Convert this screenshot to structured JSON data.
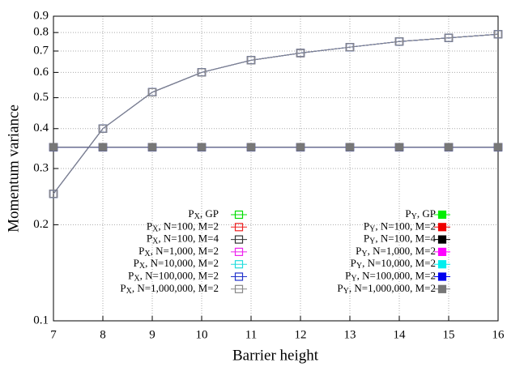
{
  "chart_data": {
    "type": "line",
    "x_label": "Barrier height",
    "y_label": "Momentum variance",
    "x": [
      7,
      8,
      9,
      10,
      11,
      12,
      13,
      14,
      15,
      16
    ],
    "xlim": [
      7,
      16
    ],
    "xticks": [
      7,
      8,
      9,
      10,
      11,
      12,
      13,
      14,
      15,
      16
    ],
    "ylim": [
      0.1,
      0.9
    ],
    "yticks": [
      0.1,
      0.2,
      0.3,
      0.4,
      0.5,
      0.6,
      0.7,
      0.8,
      0.9
    ],
    "y_log_scale": true,
    "grid": true,
    "series": [
      {
        "name": "PX, GP",
        "color": "#00dd00",
        "marker": "open",
        "values": [
          0.25,
          0.4,
          0.52,
          0.6,
          0.655,
          0.69,
          0.72,
          0.75,
          0.77,
          0.79
        ]
      },
      {
        "name": "PX, N=100, M=2",
        "color": "#ee2222",
        "marker": "open",
        "values": [
          0.25,
          0.4,
          0.52,
          0.6,
          0.655,
          0.69,
          0.72,
          0.75,
          0.77,
          0.79
        ]
      },
      {
        "name": "PX, N=100, M=4",
        "color": "#333333",
        "marker": "open",
        "values": [
          0.25,
          0.4,
          0.52,
          0.6,
          0.655,
          0.69,
          0.72,
          0.75,
          0.77,
          0.79
        ]
      },
      {
        "name": "PX, N=1,000, M=2",
        "color": "#ee22ee",
        "marker": "open",
        "values": [
          0.25,
          0.4,
          0.52,
          0.6,
          0.655,
          0.69,
          0.72,
          0.75,
          0.77,
          0.79
        ]
      },
      {
        "name": "PX, N=10,000, M=2",
        "color": "#22dddd",
        "marker": "open",
        "values": [
          0.25,
          0.4,
          0.52,
          0.6,
          0.655,
          0.69,
          0.72,
          0.75,
          0.77,
          0.79
        ]
      },
      {
        "name": "PX, N=100,000, M=2",
        "color": "#2233cc",
        "marker": "open",
        "values": [
          0.25,
          0.4,
          0.52,
          0.6,
          0.655,
          0.69,
          0.72,
          0.75,
          0.77,
          0.79
        ]
      },
      {
        "name": "PX, N=1,000,000, M=2",
        "color": "#888888",
        "marker": "open",
        "values": [
          0.25,
          0.4,
          0.52,
          0.6,
          0.655,
          0.69,
          0.72,
          0.75,
          0.77,
          0.79
        ]
      },
      {
        "name": "PY, GP",
        "color": "#00ee00",
        "marker": "filled",
        "values": [
          0.35,
          0.35,
          0.35,
          0.35,
          0.35,
          0.35,
          0.35,
          0.35,
          0.35,
          0.35
        ]
      },
      {
        "name": "PY, N=100, M=2",
        "color": "#ee0000",
        "marker": "filled",
        "values": [
          0.35,
          0.35,
          0.35,
          0.35,
          0.35,
          0.35,
          0.35,
          0.35,
          0.35,
          0.35
        ]
      },
      {
        "name": "PY, N=100, M=4",
        "color": "#000000",
        "marker": "filled",
        "values": [
          0.35,
          0.35,
          0.35,
          0.35,
          0.35,
          0.35,
          0.35,
          0.35,
          0.35,
          0.35
        ]
      },
      {
        "name": "PY, N=1,000, M=2",
        "color": "#ff00ff",
        "marker": "filled",
        "values": [
          0.35,
          0.35,
          0.35,
          0.35,
          0.35,
          0.35,
          0.35,
          0.35,
          0.35,
          0.35
        ]
      },
      {
        "name": "PY, N=10,000, M=2",
        "color": "#00eeee",
        "marker": "filled",
        "values": [
          0.35,
          0.35,
          0.35,
          0.35,
          0.35,
          0.35,
          0.35,
          0.35,
          0.35,
          0.35
        ]
      },
      {
        "name": "PY, N=100,000, M=2",
        "color": "#0000ee",
        "marker": "filled",
        "values": [
          0.35,
          0.35,
          0.35,
          0.35,
          0.35,
          0.35,
          0.35,
          0.35,
          0.35,
          0.35
        ]
      },
      {
        "name": "PY, N=1,000,000, M=2",
        "color": "#777777",
        "marker": "filled",
        "values": [
          0.35,
          0.35,
          0.35,
          0.35,
          0.35,
          0.35,
          0.35,
          0.35,
          0.35,
          0.35
        ]
      }
    ]
  }
}
